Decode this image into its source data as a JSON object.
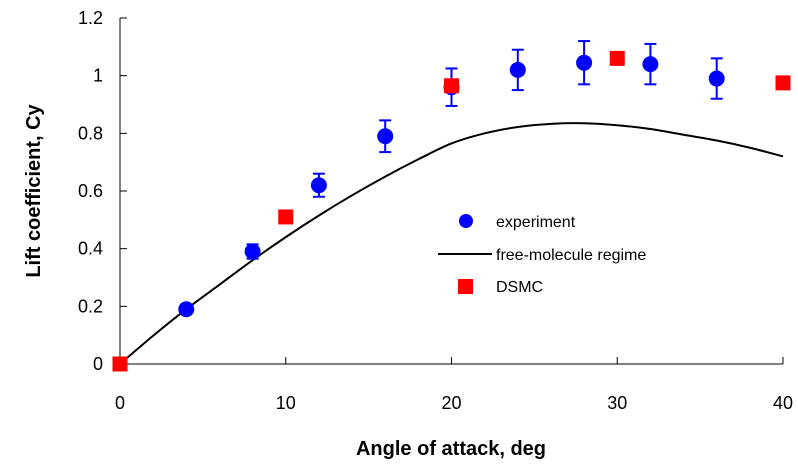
{
  "chart_data": {
    "type": "scatter",
    "xlabel": "Angle of attack, deg",
    "ylabel": "Lift coefficient, Cy",
    "xlim": [
      0,
      40
    ],
    "ylim": [
      0,
      1.2
    ],
    "x_ticks": [
      0,
      10,
      20,
      30,
      40
    ],
    "y_ticks": [
      0,
      0.2,
      0.4,
      0.6,
      0.8,
      1,
      1.2
    ],
    "x_tick_labels": [
      "0",
      "10",
      "20",
      "30",
      "40"
    ],
    "y_tick_labels": [
      "0",
      "0.2",
      "0.4",
      "0.6",
      "0.8",
      "1",
      "1.2"
    ],
    "grid": false,
    "legend_position": "center-right",
    "series": [
      {
        "name": "experiment",
        "type": "scatter",
        "marker": "circle",
        "color": "#0000ff",
        "x": [
          4,
          8,
          12,
          16,
          20,
          24,
          28,
          32,
          36
        ],
        "y": [
          0.19,
          0.39,
          0.62,
          0.79,
          0.96,
          1.02,
          1.045,
          1.04,
          0.99
        ],
        "error": [
          0.01,
          0.025,
          0.04,
          0.055,
          0.065,
          0.07,
          0.075,
          0.07,
          0.07
        ]
      },
      {
        "name": "free-molecule regime",
        "type": "line",
        "color": "#000000",
        "x": [
          0,
          2,
          4,
          6,
          8,
          10,
          12,
          14,
          16,
          18,
          20,
          22,
          24,
          26,
          28,
          30,
          32,
          34,
          36,
          38,
          40
        ],
        "y": [
          0,
          0.098,
          0.19,
          0.275,
          0.36,
          0.44,
          0.515,
          0.585,
          0.65,
          0.71,
          0.765,
          0.8,
          0.822,
          0.833,
          0.835,
          0.828,
          0.815,
          0.795,
          0.775,
          0.75,
          0.72
        ]
      },
      {
        "name": "DSMC",
        "type": "scatter",
        "marker": "square",
        "color": "#ff0000",
        "x": [
          0,
          10,
          20,
          30,
          40
        ],
        "y": [
          0,
          0.51,
          0.965,
          1.06,
          0.975
        ]
      }
    ]
  }
}
